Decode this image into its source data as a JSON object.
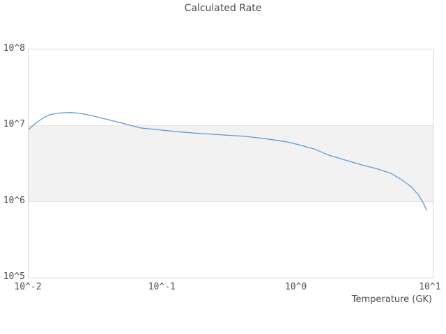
{
  "title": "Calculated Rate",
  "colors": {
    "line": "#5b9bd5",
    "band_fill": "#f2f2f2",
    "band_edge": "#e4e4e4",
    "frame": "#d5d5d5",
    "text": "#4d4d4d"
  },
  "chart_data": {
    "type": "line",
    "title": "Calculated Rate",
    "xlabel": "Temperature (GK)",
    "ylabel": "",
    "x_scale": "log",
    "y_scale": "log",
    "x_range": [
      0.01,
      10.38
    ],
    "y_range": [
      100000,
      100000000
    ],
    "x_ticks": [
      {
        "value": 0.01,
        "label": "10^-2"
      },
      {
        "value": 0.1,
        "label": "10^-1"
      },
      {
        "value": 1,
        "label": "10^0"
      },
      {
        "value": 10,
        "label": "10^1"
      }
    ],
    "y_ticks": [
      {
        "value": 100000,
        "label": "10^5"
      },
      {
        "value": 1000000,
        "label": "10^6"
      },
      {
        "value": 10000000,
        "label": "10^7"
      },
      {
        "value": 100000000,
        "label": "10^8"
      }
    ],
    "band": {
      "y_from": 1000000,
      "y_to": 10000000
    },
    "grid": "off",
    "legend": "none",
    "series": [
      {
        "name": "calculated-rate",
        "x": [
          0.01,
          0.0113,
          0.0127,
          0.0143,
          0.0171,
          0.0205,
          0.0245,
          0.0294,
          0.0373,
          0.0535,
          0.068,
          0.097,
          0.139,
          0.2,
          0.286,
          0.41,
          0.586,
          0.84,
          1.03,
          1.36,
          1.72,
          2.19,
          3.13,
          3.98,
          5.06,
          6.05,
          7.24,
          8.17,
          8.89,
          9.33
        ],
        "y": [
          8900000,
          10700000,
          12400000,
          13800000,
          14600000,
          14800000,
          14400000,
          13500000,
          12200000,
          10400000,
          9300000,
          8700000,
          8200000,
          7800000,
          7500000,
          7200000,
          6700000,
          6100000,
          5600000,
          4900000,
          4100000,
          3600000,
          3000000,
          2700000,
          2350000,
          1950000,
          1550000,
          1200000,
          930000,
          770000
        ]
      }
    ]
  }
}
